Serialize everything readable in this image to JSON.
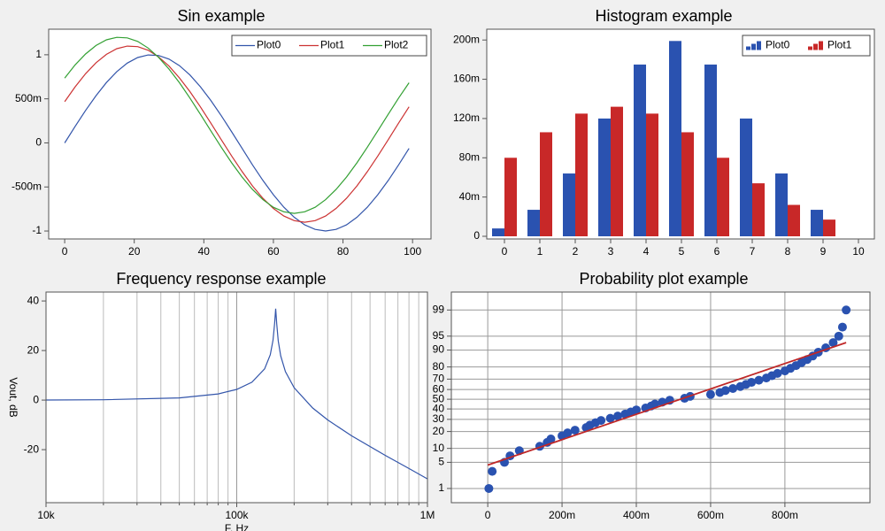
{
  "chart_data": [
    {
      "type": "line",
      "title": "Sin example",
      "x": [
        0,
        3,
        6,
        9,
        12,
        15,
        18,
        21,
        24,
        27,
        30,
        33,
        36,
        39,
        42,
        45,
        48,
        51,
        54,
        57,
        60,
        63,
        66,
        69,
        72,
        75,
        78,
        81,
        84,
        87,
        90,
        93,
        96,
        99
      ],
      "series": [
        {
          "name": "Plot0",
          "color": "#3355aa",
          "values": [
            0,
            0.187,
            0.368,
            0.536,
            0.685,
            0.809,
            0.905,
            0.969,
            0.998,
            0.992,
            0.951,
            0.876,
            0.771,
            0.637,
            0.482,
            0.309,
            0.125,
            -0.063,
            -0.249,
            -0.426,
            -0.588,
            -0.729,
            -0.844,
            -0.93,
            -0.982,
            -1,
            -0.982,
            -0.93,
            -0.844,
            -0.729,
            -0.588,
            -0.426,
            -0.249,
            -0.063
          ]
        },
        {
          "name": "Plot1",
          "color": "#cc3333",
          "values": [
            0.468,
            0.636,
            0.785,
            0.909,
            1.005,
            1.069,
            1.098,
            1.092,
            1.051,
            0.976,
            0.871,
            0.737,
            0.582,
            0.409,
            0.225,
            0.037,
            -0.149,
            -0.326,
            -0.488,
            -0.629,
            -0.744,
            -0.83,
            -0.882,
            -0.9,
            -0.882,
            -0.83,
            -0.744,
            -0.629,
            -0.488,
            -0.326,
            -0.149,
            0.037,
            0.225,
            0.409
          ]
        },
        {
          "name": "Plot2",
          "color": "#33a033",
          "values": [
            0.736,
            0.885,
            1.009,
            1.105,
            1.169,
            1.198,
            1.192,
            1.151,
            1.076,
            0.971,
            0.837,
            0.682,
            0.509,
            0.325,
            0.137,
            -0.049,
            -0.226,
            -0.388,
            -0.529,
            -0.644,
            -0.73,
            -0.782,
            -0.8,
            -0.782,
            -0.73,
            -0.644,
            -0.529,
            -0.388,
            -0.226,
            -0.049,
            0.137,
            0.325,
            0.509,
            0.682
          ]
        }
      ],
      "xlim": [
        -4.6,
        105.3
      ],
      "xticks": [
        0,
        20,
        40,
        60,
        80,
        100
      ],
      "ylim": [
        -1.09,
        1.29
      ],
      "yticks": [
        1,
        {
          "value": 0.5,
          "label": "500m"
        },
        0,
        {
          "value": -0.5,
          "label": "-500m"
        },
        -1
      ],
      "grid": false,
      "legend": "upper right"
    },
    {
      "type": "bar",
      "title": "Histogram example",
      "x": [
        0,
        1,
        2,
        3,
        4,
        5,
        6,
        7,
        8,
        9
      ],
      "series": [
        {
          "name": "Plot0",
          "color": "#2a52b0",
          "values": [
            0.008,
            0.027,
            0.064,
            0.12,
            0.175,
            0.199,
            0.175,
            0.12,
            0.064,
            0.027
          ]
        },
        {
          "name": "Plot1",
          "color": "#c82828",
          "values": [
            0.08,
            0.106,
            0.125,
            0.132,
            0.125,
            0.106,
            0.08,
            0.054,
            0.032,
            0.017
          ]
        }
      ],
      "xlim": [
        -0.5,
        10.45
      ],
      "xticks": [
        0,
        1,
        2,
        3,
        4,
        5,
        6,
        7,
        8,
        9,
        10
      ],
      "ylim": [
        -0.0027,
        0.211
      ],
      "yticks": [
        0,
        {
          "value": 0.04,
          "label": "40m"
        },
        {
          "value": 0.08,
          "label": "80m"
        },
        {
          "value": 0.12,
          "label": "120m"
        },
        {
          "value": 0.16,
          "label": "160m"
        },
        {
          "value": 0.2,
          "label": "200m"
        }
      ],
      "grid": false,
      "legend": "upper right"
    },
    {
      "type": "line",
      "title": "Frequency response example",
      "x_label": "F, Hz",
      "y_label": "Vout, dB",
      "x": [
        10000,
        20000,
        50000,
        80000,
        100000,
        120000,
        140000,
        150000,
        155000,
        158000,
        160000,
        162000,
        165000,
        170000,
        180000,
        200000,
        250000,
        300000,
        400000,
        600000,
        800000,
        1000000
      ],
      "series": [
        {
          "color": "#3355aa",
          "values": [
            0.03,
            0.14,
            0.89,
            2.5,
            4.3,
            7.2,
            12.6,
            18.3,
            24.2,
            30.9,
            36.9,
            30.7,
            23.9,
            17.8,
            11.5,
            5,
            -3.2,
            -8,
            -14.4,
            -22.3,
            -27.6,
            -31.8
          ]
        }
      ],
      "xscale": "log",
      "xlim": [
        10000,
        1000000
      ],
      "xticks": [
        {
          "value": 10000,
          "label": "10k"
        },
        {
          "value": 100000,
          "label": "100k"
        },
        {
          "value": 1000000,
          "label": "1M"
        }
      ],
      "xminorticks": [
        20000,
        30000,
        40000,
        50000,
        60000,
        70000,
        80000,
        90000,
        200000,
        300000,
        400000,
        500000,
        600000,
        700000,
        800000,
        900000
      ],
      "ylim": [
        -41.4,
        43.6
      ],
      "yticks": [
        -20,
        0,
        20,
        40
      ],
      "grid": true,
      "grid_axis": "x"
    },
    {
      "type": "scatter",
      "title": "Probability plot example",
      "series": [
        {
          "color": "#2a52b0",
          "marker": "circle",
          "x": [
            0.003,
            0.012,
            0.045,
            0.06,
            0.085,
            0.14,
            0.16,
            0.17,
            0.2,
            0.215,
            0.235,
            0.265,
            0.275,
            0.29,
            0.305,
            0.33,
            0.35,
            0.37,
            0.385,
            0.4,
            0.425,
            0.44,
            0.45,
            0.47,
            0.49,
            0.53,
            0.545,
            0.6,
            0.625,
            0.64,
            0.66,
            0.68,
            0.695,
            0.71,
            0.73,
            0.75,
            0.765,
            0.78,
            0.8,
            0.815,
            0.83,
            0.845,
            0.86,
            0.875,
            0.89,
            0.91,
            0.93,
            0.945,
            0.955,
            0.965
          ],
          "values": [
            1,
            3,
            5,
            7,
            9,
            11,
            13,
            15,
            17,
            19,
            21,
            23,
            25,
            27,
            29,
            31,
            33,
            35,
            37,
            39,
            41,
            43,
            45,
            47,
            49,
            51,
            53,
            55,
            57,
            59,
            61,
            63,
            65,
            67,
            69,
            71,
            73,
            75,
            77,
            79,
            81,
            83,
            85,
            87,
            89,
            91,
            93,
            95,
            97,
            99
          ]
        },
        {
          "color": "#c02828",
          "marker": "none",
          "x": [
            0,
            0.965
          ],
          "values": [
            4.3,
            93
          ]
        }
      ],
      "xlim": [
        -0.098,
        1.029
      ],
      "xticks": [
        0,
        {
          "value": 0.2,
          "label": "200m"
        },
        {
          "value": 0.4,
          "label": "400m"
        },
        {
          "value": 0.6,
          "label": "600m"
        },
        {
          "value": 0.8,
          "label": "800m"
        }
      ],
      "yscale": "probability",
      "ylim": [
        0.35,
        99.74
      ],
      "yticks": [
        1,
        5,
        10,
        20,
        30,
        40,
        50,
        60,
        70,
        80,
        90,
        95,
        99
      ],
      "grid": true,
      "grid_axis": "both"
    }
  ]
}
